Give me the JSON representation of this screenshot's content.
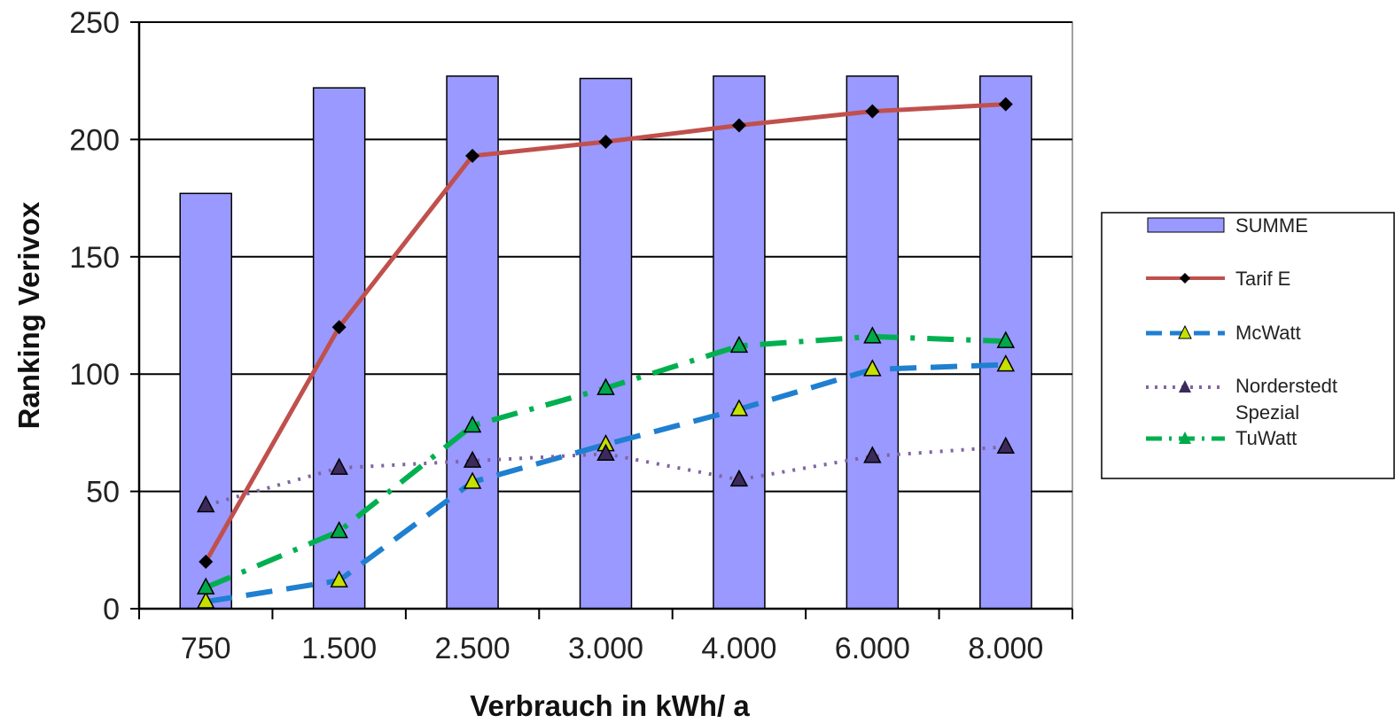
{
  "chart_data": {
    "type": "bar",
    "categories": [
      "750",
      "1.500",
      "2.500",
      "3.000",
      "4.000",
      "6.000",
      "8.000"
    ],
    "xlabel": "Verbrauch in kWh/ a",
    "ylabel": "Ranking Verivox",
    "ylim": [
      0,
      250
    ],
    "yticks": [
      "0",
      "50",
      "100",
      "150",
      "200",
      "250"
    ],
    "grid": true,
    "legend_position": "right",
    "bar_series": {
      "name": "SUMME",
      "color": "#9999ff",
      "values": [
        177,
        222,
        227,
        226,
        227,
        227,
        227
      ]
    },
    "line_series": [
      {
        "name": "Tarif E",
        "color": "#c0504d",
        "dash": "solid",
        "marker": "diamond",
        "marker_fill": "#000000",
        "values": [
          20,
          120,
          193,
          199,
          206,
          212,
          215
        ]
      },
      {
        "name": "McWatt",
        "color": "#1f7fd0",
        "dash": "dashed",
        "marker": "triangle",
        "marker_fill": "#c6e000",
        "values": [
          3,
          12,
          54,
          70,
          85,
          102,
          104
        ]
      },
      {
        "name": "Norderstedt Spezial",
        "color": "#8064a2",
        "dash": "dotted",
        "marker": "triangle",
        "marker_fill": "#3b2a5a",
        "values": [
          44,
          60,
          63,
          66,
          55,
          65,
          69
        ]
      },
      {
        "name": "TuWatt",
        "color": "#00b050",
        "dash": "dashdot",
        "marker": "triangle",
        "marker_fill": "#00a84a",
        "values": [
          9,
          33,
          78,
          94,
          112,
          116,
          114
        ]
      }
    ],
    "legend": {
      "summe": "SUMME",
      "tarif_e": "Tarif E",
      "mcwatt": "McWatt",
      "norderstedt_line1": "Norderstedt",
      "norderstedt_line2": "Spezial",
      "tuwatt": "TuWatt"
    }
  }
}
